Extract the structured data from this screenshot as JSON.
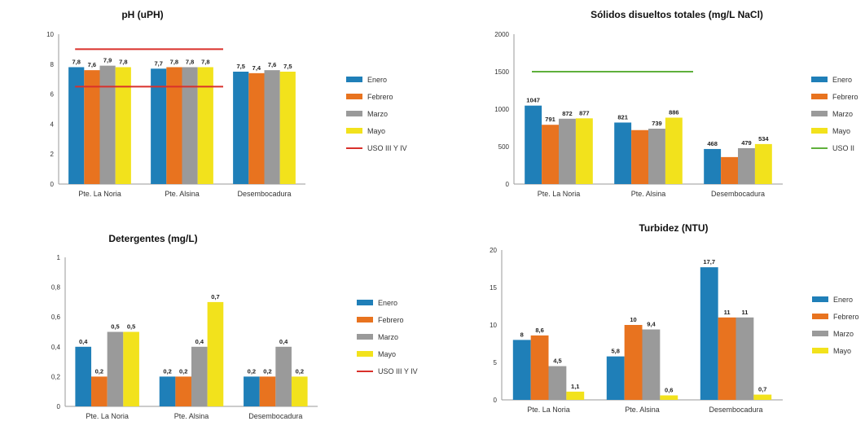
{
  "colors": {
    "Enero": "#1f7fb8",
    "Febrero": "#e8731f",
    "Marzo": "#9a9a9a",
    "Mayo": "#f2e21c",
    "uso_red": "#d9302b",
    "uso_green": "#5fb03c"
  },
  "chart_data": [
    {
      "type": "bar",
      "title": "pH (uPH)",
      "categories": [
        "Pte. La Noria",
        "Pte. Alsina",
        "Desembocadura"
      ],
      "ylim": [
        0,
        10
      ],
      "yticks": [
        "0",
        "2",
        "4",
        "6",
        "8",
        "10"
      ],
      "series": [
        {
          "name": "Enero",
          "values": [
            7.8,
            7.7,
            7.5
          ],
          "labels": [
            "7,8",
            "7,7",
            "7,5"
          ]
        },
        {
          "name": "Febrero",
          "values": [
            7.6,
            7.8,
            7.4
          ],
          "labels": [
            "7,6",
            "7,8",
            "7,4"
          ]
        },
        {
          "name": "Marzo",
          "values": [
            7.9,
            7.8,
            7.6
          ],
          "labels": [
            "7,9",
            "7,8",
            "7,6"
          ]
        },
        {
          "name": "Mayo",
          "values": [
            7.8,
            7.8,
            7.5
          ],
          "labels": [
            "7,8",
            "7,8",
            "7,5"
          ]
        }
      ],
      "limits": [
        {
          "name": "USO III Y IV",
          "values": [
            9,
            6.5
          ],
          "color": "uso_red"
        }
      ],
      "grid": false,
      "legend": "right"
    },
    {
      "type": "bar",
      "title": "Sólidos disueltos totales (mg/L NaCl)",
      "categories": [
        "Pte. La Noria",
        "Pte. Alsina",
        "Desembocadura"
      ],
      "ylim": [
        0,
        2000
      ],
      "yticks": [
        "0",
        "500",
        "1000",
        "1500",
        "2000"
      ],
      "series": [
        {
          "name": "Enero",
          "values": [
            1047,
            821,
            468
          ],
          "labels": [
            "1047",
            "821",
            "468"
          ]
        },
        {
          "name": "Febrero",
          "values": [
            791,
            720,
            360
          ],
          "labels": [
            "791",
            "",
            ""
          ]
        },
        {
          "name": "Marzo",
          "values": [
            872,
            739,
            479
          ],
          "labels": [
            "872",
            "739",
            "479"
          ]
        },
        {
          "name": "Mayo",
          "values": [
            877,
            886,
            534
          ],
          "labels": [
            "877",
            "886",
            "534"
          ]
        }
      ],
      "limits": [
        {
          "name": "USO II",
          "values": [
            1500
          ],
          "color": "uso_green"
        }
      ],
      "grid": false,
      "legend": "right"
    },
    {
      "type": "bar",
      "title": "Detergentes (mg/L)",
      "categories": [
        "Pte. La Noria",
        "Pte. Alsina",
        "Desembocadura"
      ],
      "ylim": [
        0,
        1
      ],
      "yticks": [
        "0",
        "0,2",
        "0,4",
        "0,6",
        "0,8",
        "1"
      ],
      "series": [
        {
          "name": "Enero",
          "values": [
            0.4,
            0.2,
            0.2
          ],
          "labels": [
            "0,4",
            "0,2",
            "0,2"
          ]
        },
        {
          "name": "Febrero",
          "values": [
            0.2,
            0.2,
            0.2
          ],
          "labels": [
            "0,2",
            "0,2",
            "0,2"
          ]
        },
        {
          "name": "Marzo",
          "values": [
            0.5,
            0.4,
            0.4
          ],
          "labels": [
            "0,5",
            "0,4",
            "0,4"
          ]
        },
        {
          "name": "Mayo",
          "values": [
            0.5,
            0.7,
            0.2
          ],
          "labels": [
            "0,5",
            "0,7",
            "0,2"
          ]
        }
      ],
      "limits": [
        {
          "name": "USO III Y IV",
          "values": [],
          "color": "uso_red"
        }
      ],
      "grid": false,
      "legend": "right"
    },
    {
      "type": "bar",
      "title": "Turbidez (NTU)",
      "categories": [
        "Pte. La Noria",
        "Pte. Alsina",
        "Desembocadura"
      ],
      "ylim": [
        0,
        20
      ],
      "yticks": [
        "0",
        "5",
        "10",
        "15",
        "20"
      ],
      "series": [
        {
          "name": "Enero",
          "values": [
            8,
            5.8,
            17.7
          ],
          "labels": [
            "8",
            "5,8",
            "17,7"
          ]
        },
        {
          "name": "Febrero",
          "values": [
            8.6,
            10,
            11
          ],
          "labels": [
            "8,6",
            "10",
            "11"
          ]
        },
        {
          "name": "Marzo",
          "values": [
            4.5,
            9.4,
            11
          ],
          "labels": [
            "4,5",
            "9,4",
            "11"
          ]
        },
        {
          "name": "Mayo",
          "values": [
            1.1,
            0.6,
            0.7
          ],
          "labels": [
            "1,1",
            "0,6",
            "0,7"
          ]
        }
      ],
      "limits": [],
      "grid": false,
      "legend": "right"
    }
  ]
}
